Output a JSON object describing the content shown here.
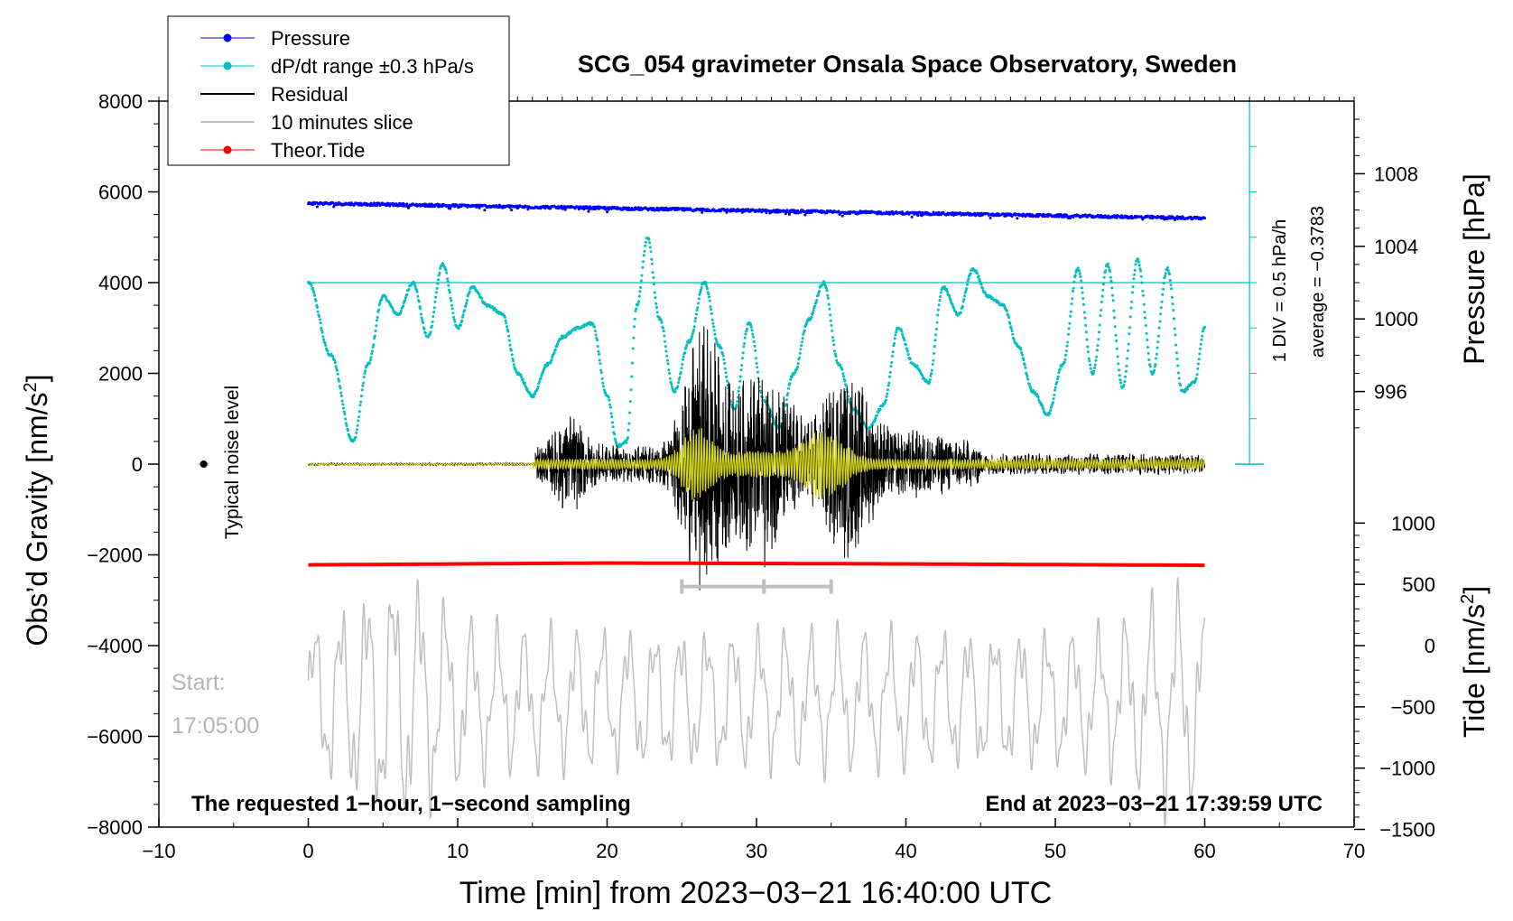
{
  "chart_data": {
    "type": "line",
    "title": "SCG_054 gravimeter Onsala Space Observatory, Sweden",
    "xlabel": "Time [min] from 2023−03−21 16:40:00 UTC",
    "ylabel_main": "Obs’d Gravity [nm/s",
    "ylabel_main_sup": "2",
    "ylabel_main_tail": "]",
    "ylabel_pressure": "Pressure [hPa]",
    "ylabel_tide": "Tide [nm/s",
    "ylabel_tide_sup": "2",
    "ylabel_tide_tail": "]",
    "xlim": [
      -10,
      70
    ],
    "ylim": [
      -8000,
      8000
    ],
    "x_ticks": [
      {
        "value": -10,
        "label": "−10"
      },
      {
        "value": 0,
        "label": "0"
      },
      {
        "value": 10,
        "label": "10"
      },
      {
        "value": 20,
        "label": "20"
      },
      {
        "value": 30,
        "label": "30"
      },
      {
        "value": 40,
        "label": "40"
      },
      {
        "value": 50,
        "label": "50"
      },
      {
        "value": 60,
        "label": "60"
      },
      {
        "value": 70,
        "label": "70"
      }
    ],
    "y_ticks": [
      {
        "value": 8000,
        "label": "8000"
      },
      {
        "value": 6000,
        "label": "6000"
      },
      {
        "value": 4000,
        "label": "4000"
      },
      {
        "value": 2000,
        "label": "2000"
      },
      {
        "value": 0,
        "label": "0"
      },
      {
        "value": -2000,
        "label": "−2000"
      },
      {
        "value": -4000,
        "label": "−4000"
      },
      {
        "value": -6000,
        "label": "−6000"
      },
      {
        "value": -8000,
        "label": "−8000"
      }
    ],
    "pressure_axis": {
      "ylim_main_map": {
        "p_ref": 1000,
        "y_ref": 3200,
        "nm_per_hPa": 400
      },
      "ticks": [
        {
          "value": 1008,
          "label": "1008"
        },
        {
          "value": 1004,
          "label": "1004"
        },
        {
          "value": 1000,
          "label": "1000"
        },
        {
          "value": 996,
          "label": "996"
        }
      ]
    },
    "tide_axis": {
      "ylim_main_map": {
        "tide_ref": 0,
        "y_ref": -4000,
        "nm_per_unit": 2.7
      },
      "ticks": [
        {
          "value": 1000,
          "label": "1000"
        },
        {
          "value": 500,
          "label": "500"
        },
        {
          "value": 0,
          "label": "0"
        },
        {
          "value": -500,
          "label": "−500"
        },
        {
          "value": -1000,
          "label": "−1000"
        },
        {
          "value": -1500,
          "label": "−1500"
        }
      ]
    },
    "legend": {
      "placement": "top-left",
      "entries": [
        {
          "label": "Pressure",
          "color": "#0000ff",
          "marker": true
        },
        {
          "label": "dP/dt range ±0.3 hPa/s",
          "color": "#00bfbf",
          "marker": true
        },
        {
          "label": "Residual",
          "color": "#000000",
          "marker": false
        },
        {
          "label": "10 minutes slice",
          "color": "#bfbfbf",
          "marker": false
        },
        {
          "label": "Theor.Tide",
          "color": "#ff0000",
          "marker": true
        }
      ]
    },
    "series": [
      {
        "name": "Pressure",
        "color": "#0000ff",
        "x_range": [
          0,
          60
        ],
        "start": 5750,
        "end": 5420
      },
      {
        "name": "dP/dt",
        "color": "#00bfbf",
        "x": [
          0,
          1.5,
          3,
          4,
          5,
          6,
          7,
          8,
          9,
          10,
          11,
          12,
          13,
          14,
          15,
          16,
          17,
          18,
          19,
          20,
          20.7,
          21.3,
          22,
          22.7,
          23.5,
          24.5,
          25.5,
          26.5,
          27.5,
          28.5,
          29.5,
          30.5,
          31.5,
          32.5,
          33.5,
          34.5,
          35.5,
          36.5,
          37.5,
          38.5,
          39.5,
          40.5,
          41.5,
          42.5,
          43.5,
          44.5,
          45.5,
          46.5,
          47.5,
          48.5,
          49.5,
          50.5,
          51.5,
          52.5,
          53.5,
          54.5,
          55.5,
          56.5,
          57.5,
          58.5,
          59.3,
          60
        ],
        "values": [
          4000,
          2400,
          500,
          2200,
          3700,
          3300,
          4000,
          2800,
          4400,
          3000,
          3900,
          3500,
          3300,
          2000,
          1500,
          2200,
          2800,
          3000,
          3100,
          1500,
          400,
          500,
          3500,
          5000,
          3200,
          1600,
          2700,
          4000,
          2600,
          1200,
          3100,
          1400,
          800,
          2000,
          3200,
          4000,
          2200,
          1200,
          800,
          1300,
          3000,
          2200,
          1800,
          3900,
          3300,
          4300,
          3700,
          3500,
          2600,
          1600,
          1100,
          2200,
          4300,
          2000,
          4400,
          1700,
          4500,
          2000,
          4300,
          1600,
          1800,
          3000
        ]
      },
      {
        "name": "Residual",
        "color": "#000000",
        "x_range": [
          0,
          60
        ]
      },
      {
        "name": "Yellow trace",
        "color": "#d4d41a",
        "x_range": [
          0,
          60
        ]
      },
      {
        "name": "Theor.Tide",
        "color": "#ff0000",
        "x_range": [
          0,
          60
        ],
        "values": [
          -2220,
          -2180,
          -2200,
          -2230
        ]
      },
      {
        "name": "10 minutes slice",
        "color": "#bfbfbf",
        "x_range": [
          0,
          60
        ]
      }
    ],
    "reference_line": {
      "y": 4000,
      "x_range": [
        0,
        63
      ],
      "color": "#00bfbf"
    },
    "slice_marker": {
      "x_start": 25,
      "x_end": 35,
      "y": -2700,
      "mid": 30.5
    },
    "noise_marker": {
      "x": -7,
      "y": 0
    },
    "annotations": {
      "noise_label": "Typical noise level",
      "start_label": "Start:",
      "start_time": "17:05:00",
      "bottom_left": "The requested 1−hour, 1−second sampling",
      "bottom_right": "End at 2023−03−21 17:39:59 UTC",
      "div_label": "1 DIV = 0.5 hPa/h",
      "average_label": "average = −0.3783"
    }
  }
}
